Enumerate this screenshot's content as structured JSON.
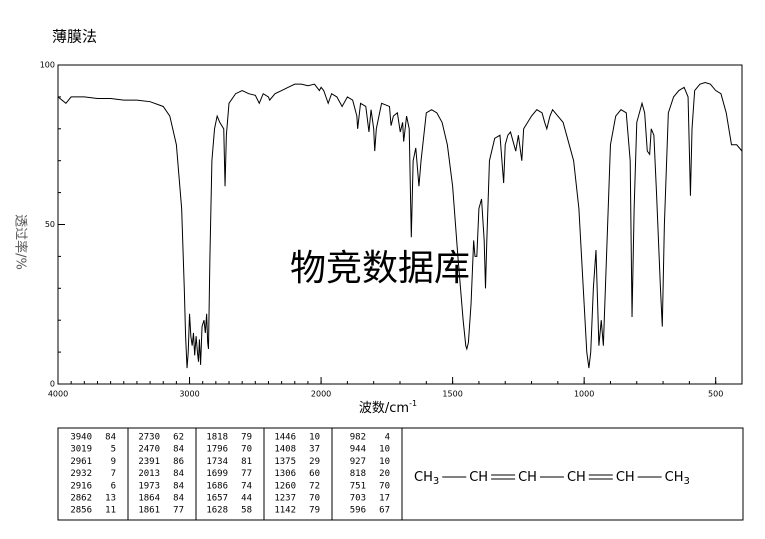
{
  "chart_data": {
    "type": "line",
    "title": "薄膜法",
    "watermark": "物竞数据库",
    "x_label": "波数/cm",
    "x_label_sup": "-1",
    "y_label": "透过率/%",
    "xlim": [
      4000,
      400
    ],
    "ylim": [
      0,
      100
    ],
    "x_expand_below": 2000,
    "xticks": [
      4000,
      3000,
      2000,
      1500,
      1000,
      500
    ],
    "yticks": [
      0,
      50,
      100
    ],
    "xminor": 100,
    "yminor": 10,
    "color": "#000000",
    "watermark_color": "#aab4e0",
    "x": [
      4000,
      3940,
      3900,
      3800,
      3700,
      3600,
      3500,
      3400,
      3300,
      3200,
      3150,
      3100,
      3060,
      3040,
      3030,
      3019,
      3010,
      3000,
      2990,
      2980,
      2970,
      2961,
      2950,
      2940,
      2932,
      2925,
      2916,
      2905,
      2890,
      2880,
      2870,
      2862,
      2856,
      2845,
      2830,
      2810,
      2790,
      2770,
      2740,
      2730,
      2720,
      2700,
      2650,
      2600,
      2550,
      2500,
      2470,
      2440,
      2400,
      2391,
      2350,
      2300,
      2250,
      2200,
      2150,
      2100,
      2050,
      2013,
      2000,
      1990,
      1973,
      1960,
      1940,
      1920,
      1900,
      1880,
      1864,
      1861,
      1850,
      1830,
      1818,
      1810,
      1800,
      1796,
      1790,
      1770,
      1740,
      1734,
      1725,
      1710,
      1699,
      1690,
      1686,
      1675,
      1665,
      1657,
      1650,
      1640,
      1628,
      1620,
      1600,
      1580,
      1560,
      1540,
      1520,
      1500,
      1480,
      1460,
      1450,
      1446,
      1440,
      1430,
      1420,
      1415,
      1408,
      1400,
      1390,
      1380,
      1375,
      1370,
      1360,
      1340,
      1320,
      1306,
      1300,
      1290,
      1280,
      1270,
      1260,
      1250,
      1237,
      1230,
      1200,
      1180,
      1160,
      1150,
      1142,
      1130,
      1120,
      1100,
      1080,
      1060,
      1040,
      1020,
      1000,
      990,
      982,
      975,
      965,
      955,
      944,
      935,
      927,
      915,
      900,
      880,
      860,
      840,
      825,
      818,
      810,
      800,
      780,
      770,
      760,
      751,
      745,
      735,
      725,
      710,
      703,
      695,
      680,
      660,
      640,
      620,
      605,
      596,
      590,
      580,
      560,
      540,
      520,
      500,
      480,
      460,
      440,
      420,
      400
    ],
    "values": [
      90,
      88,
      90,
      90,
      89.5,
      89.5,
      89,
      89,
      88.5,
      87,
      84,
      75,
      55,
      30,
      15,
      5,
      10,
      22,
      15,
      12,
      16,
      9,
      15,
      10,
      7,
      14,
      6,
      18,
      20,
      16,
      22,
      13,
      11,
      40,
      70,
      80,
      84,
      82,
      80,
      62,
      78,
      88,
      91,
      92,
      91,
      90.5,
      88,
      91,
      90,
      89,
      91,
      92,
      93,
      94,
      94,
      93.5,
      94,
      92,
      93,
      92,
      88,
      91,
      90,
      87,
      90,
      89,
      84,
      80,
      88,
      87,
      79,
      86,
      80,
      73,
      80,
      88,
      87,
      81,
      84,
      85,
      79,
      82,
      76,
      84,
      80,
      46,
      70,
      74,
      62,
      70,
      85,
      86,
      85,
      82,
      75,
      62,
      40,
      20,
      12,
      11,
      13,
      25,
      45,
      40,
      40,
      55,
      58,
      45,
      30,
      45,
      70,
      77,
      78,
      63,
      75,
      78,
      79,
      76,
      73,
      78,
      70,
      80,
      84,
      86,
      85,
      82,
      80,
      84,
      86,
      84,
      82,
      76,
      70,
      55,
      25,
      10,
      5,
      10,
      30,
      42,
      12,
      20,
      12,
      40,
      75,
      84,
      86,
      85,
      70,
      21,
      55,
      82,
      88,
      85,
      73,
      72,
      80,
      78,
      60,
      30,
      18,
      50,
      85,
      90,
      92,
      93,
      90,
      59,
      80,
      92,
      94,
      94.5,
      94,
      92,
      91,
      85,
      75,
      75,
      73
    ]
  },
  "peak_table": {
    "columns": [
      [
        [
          "3940",
          "84"
        ],
        [
          "3019",
          "5"
        ],
        [
          "2961",
          "9"
        ],
        [
          "2932",
          "7"
        ],
        [
          "2916",
          "6"
        ],
        [
          "2862",
          "13"
        ],
        [
          "2856",
          "11"
        ]
      ],
      [
        [
          "2730",
          "62"
        ],
        [
          "2470",
          "84"
        ],
        [
          "2391",
          "86"
        ],
        [
          "2013",
          "84"
        ],
        [
          "1973",
          "84"
        ],
        [
          "1864",
          "84"
        ],
        [
          "1861",
          "77"
        ]
      ],
      [
        [
          "1818",
          "79"
        ],
        [
          "1796",
          "70"
        ],
        [
          "1734",
          "81"
        ],
        [
          "1699",
          "77"
        ],
        [
          "1686",
          "74"
        ],
        [
          "1657",
          "44"
        ],
        [
          "1628",
          "58"
        ]
      ],
      [
        [
          "1446",
          "10"
        ],
        [
          "1408",
          "37"
        ],
        [
          "1375",
          "29"
        ],
        [
          "1306",
          "60"
        ],
        [
          "1260",
          "72"
        ],
        [
          "1237",
          "70"
        ],
        [
          "1142",
          "79"
        ]
      ],
      [
        [
          "982",
          "4"
        ],
        [
          "944",
          "10"
        ],
        [
          "927",
          "10"
        ],
        [
          "818",
          "20"
        ],
        [
          "751",
          "70"
        ],
        [
          "703",
          "17"
        ],
        [
          "596",
          "67"
        ]
      ]
    ]
  },
  "structure": {
    "groups": [
      {
        "text": "CH",
        "sub": "3"
      },
      {
        "text": "CH"
      },
      {
        "text": "CH"
      },
      {
        "text": "CH"
      },
      {
        "text": "CH"
      },
      {
        "text": "CH",
        "sub": "3"
      }
    ],
    "bonds": [
      "single",
      "double",
      "single",
      "double",
      "single"
    ]
  }
}
